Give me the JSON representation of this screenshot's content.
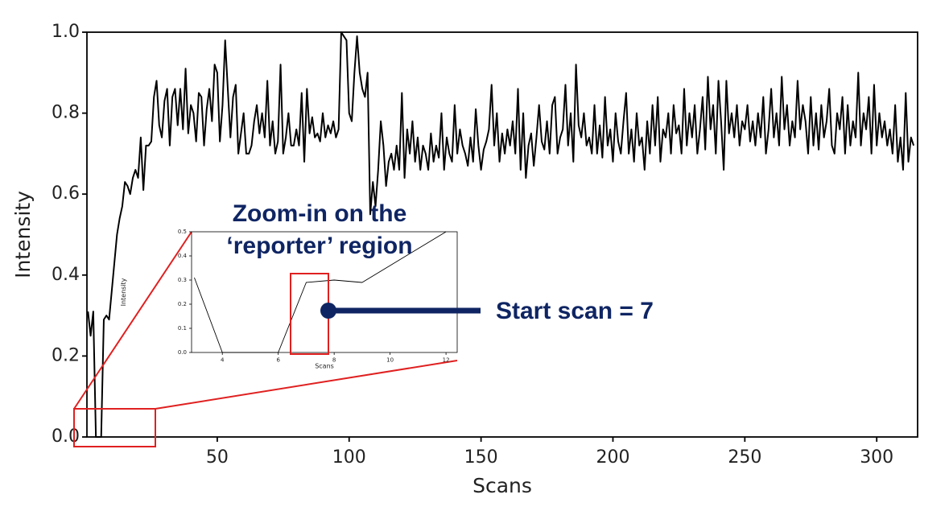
{
  "chart_data": [
    {
      "type": "line",
      "x_label": "Scans",
      "y_label": "Intensity",
      "color": "#000000",
      "annotations": [
        "Zoom-in on the ‘reporter’ region",
        "Start scan = 7"
      ],
      "x": [
        1,
        2,
        3,
        4,
        5,
        6,
        7,
        8,
        9,
        10,
        11,
        12,
        13,
        14,
        15,
        16,
        17,
        18,
        19,
        20,
        21,
        22,
        23,
        24,
        25,
        26,
        27,
        28,
        29,
        30,
        31,
        32,
        33,
        34,
        35,
        36,
        37,
        38,
        39,
        40,
        41,
        42,
        43,
        44,
        45,
        46,
        47,
        48,
        49,
        50,
        51,
        52,
        53,
        54,
        55,
        56,
        57,
        58,
        59,
        60,
        61,
        62,
        63,
        64,
        65,
        66,
        67,
        68,
        69,
        70,
        71,
        72,
        73,
        74,
        75,
        76,
        77,
        78,
        79,
        80,
        81,
        82,
        83,
        84,
        85,
        86,
        87,
        88,
        89,
        90,
        91,
        92,
        93,
        94,
        95,
        96,
        97,
        98,
        99,
        100,
        101,
        102,
        103,
        104,
        105,
        106,
        107,
        108,
        109,
        110,
        111,
        112,
        113,
        114,
        115,
        116,
        117,
        118,
        119,
        120,
        121,
        122,
        123,
        124,
        125,
        126,
        127,
        128,
        129,
        130,
        131,
        132,
        133,
        134,
        135,
        136,
        137,
        138,
        139,
        140,
        141,
        142,
        143,
        144,
        145,
        146,
        147,
        148,
        149,
        150,
        151,
        152,
        153,
        154,
        155,
        156,
        157,
        158,
        159,
        160,
        161,
        162,
        163,
        164,
        165,
        166,
        167,
        168,
        169,
        170,
        171,
        172,
        173,
        174,
        175,
        176,
        177,
        178,
        179,
        180,
        181,
        182,
        183,
        184,
        185,
        186,
        187,
        188,
        189,
        190,
        191,
        192,
        193,
        194,
        195,
        196,
        197,
        198,
        199,
        200,
        201,
        202,
        203,
        204,
        205,
        206,
        207,
        208,
        209,
        210,
        211,
        212,
        213,
        214,
        215,
        216,
        217,
        218,
        219,
        220,
        221,
        222,
        223,
        224,
        225,
        226,
        227,
        228,
        229,
        230,
        231,
        232,
        233,
        234,
        235,
        236,
        237,
        238,
        239,
        240,
        241,
        242,
        243,
        244,
        245,
        246,
        247,
        248,
        249,
        250,
        251,
        252,
        253,
        254,
        255,
        256,
        257,
        258,
        259,
        260,
        261,
        262,
        263,
        264,
        265,
        266,
        267,
        268,
        269,
        270,
        271,
        272,
        273,
        274,
        275,
        276,
        277,
        278,
        279,
        280,
        281,
        282,
        283,
        284,
        285,
        286,
        287,
        288,
        289,
        290,
        291,
        292,
        293,
        294,
        295,
        296,
        297,
        298,
        299,
        300,
        301,
        302,
        303,
        304,
        305,
        306,
        307,
        308,
        309,
        310,
        311,
        312,
        313,
        314
      ],
      "values": [
        0.31,
        0.25,
        0.31,
        0,
        0,
        0,
        0.29,
        0.3,
        0.29,
        0.36,
        0.43,
        0.5,
        0.54,
        0.57,
        0.63,
        0.62,
        0.6,
        0.64,
        0.66,
        0.64,
        0.74,
        0.61,
        0.72,
        0.72,
        0.73,
        0.84,
        0.88,
        0.77,
        0.74,
        0.83,
        0.86,
        0.72,
        0.84,
        0.86,
        0.77,
        0.86,
        0.76,
        0.91,
        0.75,
        0.82,
        0.8,
        0.73,
        0.85,
        0.84,
        0.72,
        0.81,
        0.86,
        0.78,
        0.92,
        0.9,
        0.73,
        0.82,
        0.98,
        0.86,
        0.74,
        0.84,
        0.87,
        0.7,
        0.75,
        0.8,
        0.7,
        0.7,
        0.72,
        0.78,
        0.82,
        0.75,
        0.8,
        0.74,
        0.88,
        0.72,
        0.78,
        0.7,
        0.73,
        0.92,
        0.7,
        0.74,
        0.8,
        0.72,
        0.72,
        0.76,
        0.72,
        0.85,
        0.68,
        0.86,
        0.75,
        0.79,
        0.74,
        0.75,
        0.73,
        0.8,
        0.74,
        0.77,
        0.75,
        0.78,
        0.74,
        0.76,
        1.0,
        0.99,
        0.98,
        0.8,
        0.78,
        0.9,
        0.99,
        0.9,
        0.86,
        0.84,
        0.9,
        0.55,
        0.63,
        0.57,
        0.66,
        0.78,
        0.72,
        0.62,
        0.68,
        0.7,
        0.66,
        0.72,
        0.66,
        0.85,
        0.64,
        0.76,
        0.7,
        0.78,
        0.68,
        0.74,
        0.66,
        0.72,
        0.7,
        0.66,
        0.75,
        0.68,
        0.72,
        0.69,
        0.8,
        0.66,
        0.74,
        0.7,
        0.68,
        0.82,
        0.7,
        0.76,
        0.72,
        0.7,
        0.67,
        0.74,
        0.68,
        0.81,
        0.72,
        0.66,
        0.71,
        0.73,
        0.76,
        0.87,
        0.72,
        0.8,
        0.68,
        0.75,
        0.7,
        0.76,
        0.72,
        0.78,
        0.7,
        0.86,
        0.66,
        0.8,
        0.64,
        0.72,
        0.75,
        0.67,
        0.74,
        0.82,
        0.73,
        0.71,
        0.78,
        0.7,
        0.82,
        0.84,
        0.7,
        0.74,
        0.76,
        0.87,
        0.72,
        0.8,
        0.68,
        0.92,
        0.77,
        0.74,
        0.8,
        0.72,
        0.74,
        0.7,
        0.82,
        0.7,
        0.77,
        0.69,
        0.84,
        0.72,
        0.76,
        0.68,
        0.8,
        0.73,
        0.7,
        0.78,
        0.85,
        0.7,
        0.76,
        0.68,
        0.8,
        0.72,
        0.74,
        0.66,
        0.78,
        0.7,
        0.82,
        0.72,
        0.84,
        0.68,
        0.76,
        0.74,
        0.8,
        0.7,
        0.82,
        0.75,
        0.77,
        0.7,
        0.86,
        0.72,
        0.8,
        0.74,
        0.82,
        0.7,
        0.76,
        0.84,
        0.71,
        0.89,
        0.76,
        0.82,
        0.7,
        0.88,
        0.78,
        0.66,
        0.88,
        0.75,
        0.8,
        0.74,
        0.82,
        0.72,
        0.78,
        0.76,
        0.82,
        0.73,
        0.78,
        0.72,
        0.8,
        0.74,
        0.84,
        0.7,
        0.76,
        0.86,
        0.74,
        0.8,
        0.72,
        0.89,
        0.76,
        0.82,
        0.72,
        0.78,
        0.74,
        0.88,
        0.76,
        0.82,
        0.78,
        0.7,
        0.84,
        0.72,
        0.8,
        0.71,
        0.82,
        0.74,
        0.78,
        0.86,
        0.72,
        0.7,
        0.8,
        0.76,
        0.84,
        0.7,
        0.82,
        0.72,
        0.78,
        0.74,
        0.9,
        0.72,
        0.8,
        0.76,
        0.84,
        0.7,
        0.87,
        0.72,
        0.8,
        0.74,
        0.78,
        0.72,
        0.76,
        0.7,
        0.82,
        0.68,
        0.74,
        0.66,
        0.85,
        0.68,
        0.74,
        0.72
      ],
      "xlim": [
        0.6,
        315.5
      ],
      "ylim": [
        0,
        1
      ],
      "xticks": [
        50,
        100,
        150,
        200,
        250,
        300
      ],
      "yticks": [
        {
          "value": 0,
          "label": "0.0"
        },
        0.2,
        0.4,
        0.6,
        0.8,
        {
          "value": 1,
          "label": "1.0"
        }
      ]
    },
    {
      "type": "line",
      "x_label": "Scans",
      "y_label": "Intensity",
      "color": "#000000",
      "x": [
        3,
        4,
        5,
        6,
        7,
        8,
        9,
        10,
        11,
        12
      ],
      "values": [
        0.31,
        0,
        0,
        0,
        0.29,
        0.3,
        0.29,
        0.36,
        0.43,
        0.5
      ],
      "xlim": [
        2.9,
        12.4
      ],
      "ylim": [
        0,
        0.5
      ],
      "xticks": [
        4,
        6,
        8,
        10,
        12
      ],
      "yticks": [
        {
          "value": 0,
          "label": "0.0"
        },
        0.1,
        0.2,
        0.3,
        0.4,
        0.5
      ]
    }
  ]
}
